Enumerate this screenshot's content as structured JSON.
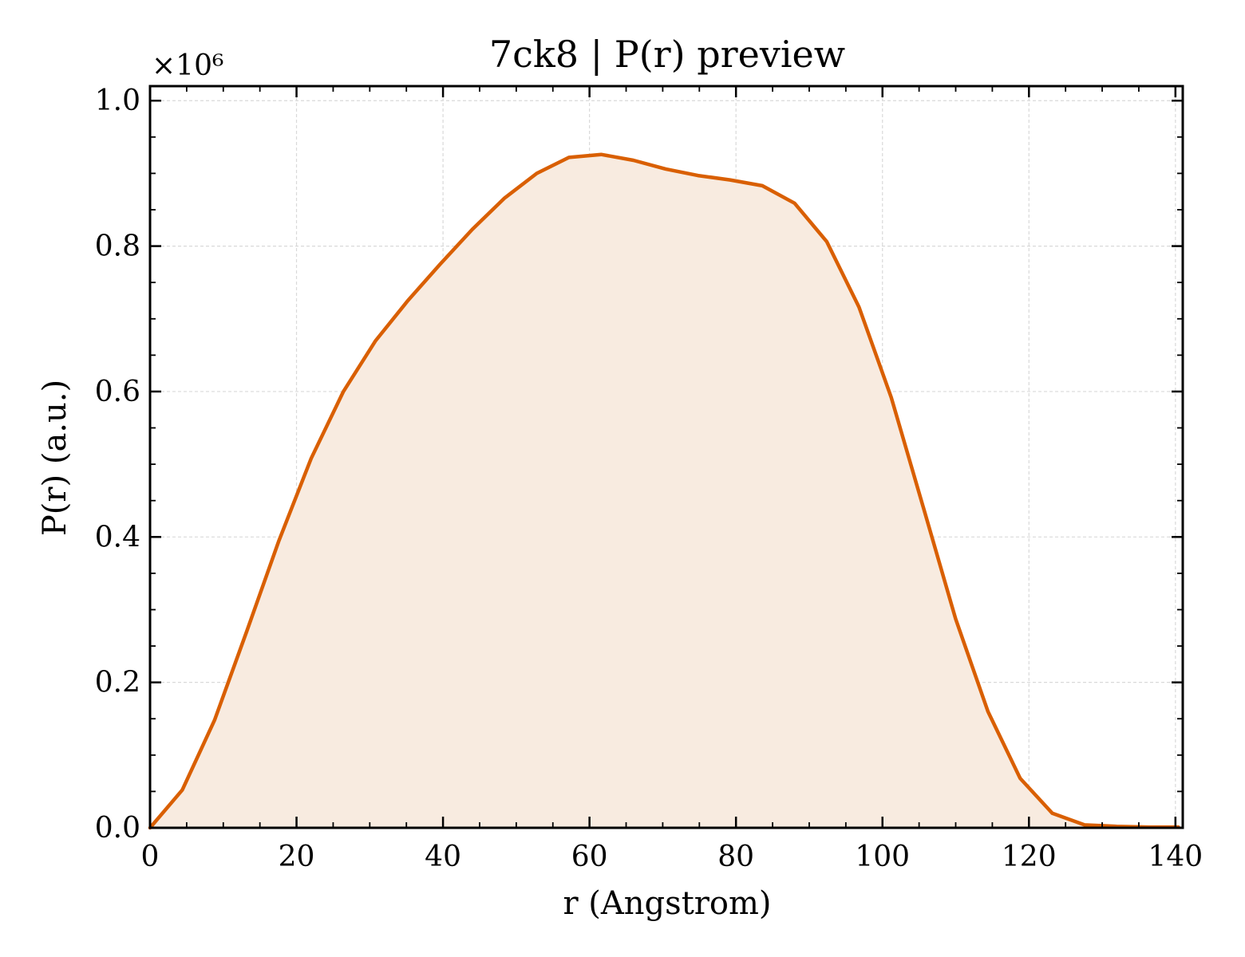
{
  "chart_data": {
    "type": "area",
    "title": "7ck8 | P(r) preview",
    "xlabel": "r (Angstrom)",
    "ylabel": "P(r) (a.u.)",
    "y_scale_label": "×10⁶",
    "y_multiplier": 1000000,
    "xlim": [
      0,
      141
    ],
    "ylim": [
      0,
      1.02
    ],
    "xticks": [
      0,
      20,
      40,
      60,
      80,
      100,
      120,
      140
    ],
    "xtick_labels": [
      "0",
      "20",
      "40",
      "60",
      "80",
      "100",
      "120",
      "140"
    ],
    "yticks": [
      0.0,
      0.2,
      0.4,
      0.6,
      0.8,
      1.0
    ],
    "ytick_labels": [
      "0.0",
      "0.2",
      "0.4",
      "0.6",
      "0.8",
      "1.0"
    ],
    "grid": true,
    "line_color": "#d95f02",
    "fill_color": "#f8ebe0",
    "series": [
      {
        "x": [
          0,
          4.4,
          8.8,
          13.2,
          17.6,
          22.0,
          26.4,
          30.8,
          35.2,
          39.6,
          44.0,
          48.4,
          52.8,
          57.2,
          61.6,
          66.0,
          70.4,
          74.8,
          79.2,
          83.6,
          88.0,
          92.4,
          96.8,
          101.2,
          105.6,
          110.0,
          114.4,
          118.8,
          123.2,
          127.6,
          132.0,
          136.4,
          140.4
        ],
        "y": [
          0.0,
          0.052,
          0.148,
          0.27,
          0.395,
          0.508,
          0.6,
          0.67,
          0.725,
          0.775,
          0.823,
          0.866,
          0.9,
          0.922,
          0.926,
          0.918,
          0.906,
          0.897,
          0.891,
          0.883,
          0.859,
          0.806,
          0.716,
          0.592,
          0.44,
          0.287,
          0.16,
          0.068,
          0.02,
          0.004,
          0.002,
          0.001,
          0.001
        ]
      }
    ]
  }
}
